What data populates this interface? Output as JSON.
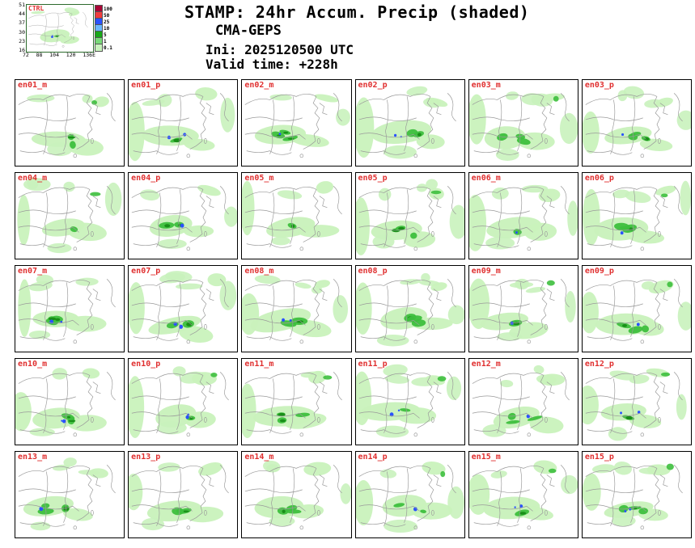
{
  "header": {
    "title": "STAMP: 24hr Accum. Precip (shaded)",
    "model": "CMA-GEPS",
    "init": "Ini:  2025120500 UTC",
    "valid": "Valid time: +228h"
  },
  "ctrl": {
    "label": "CTRL",
    "y_axis": [
      "51",
      "44",
      "37",
      "30",
      "23",
      "16"
    ],
    "x_axis": [
      "72",
      "88",
      "104",
      "120",
      "136E"
    ]
  },
  "legend": {
    "values": [
      "100",
      "50",
      "25",
      "10",
      "5",
      "1",
      "0.1"
    ],
    "colors": [
      "#a90636",
      "#f03c3c",
      "#2a52ff",
      "#6ab8ff",
      "#18a718",
      "#79d979",
      "#c8f2bc"
    ]
  },
  "palette": {
    "light": "#c9f2bc",
    "mid": "#3dbf3d",
    "deep": "#148a14",
    "blue": "#2a52ff",
    "map_line": "#9a9a9a"
  },
  "panels": [
    "en01_m",
    "en01_p",
    "en02_m",
    "en02_p",
    "en03_m",
    "en03_p",
    "en04_m",
    "en04_p",
    "en05_m",
    "en05_p",
    "en06_m",
    "en06_p",
    "en07_m",
    "en07_p",
    "en08_m",
    "en08_p",
    "en09_m",
    "en09_p",
    "en10_m",
    "en10_p",
    "en11_m",
    "en11_p",
    "en12_m",
    "en12_p",
    "en13_m",
    "en13_p",
    "en14_m",
    "en14_p",
    "en15_m",
    "en15_p"
  ]
}
